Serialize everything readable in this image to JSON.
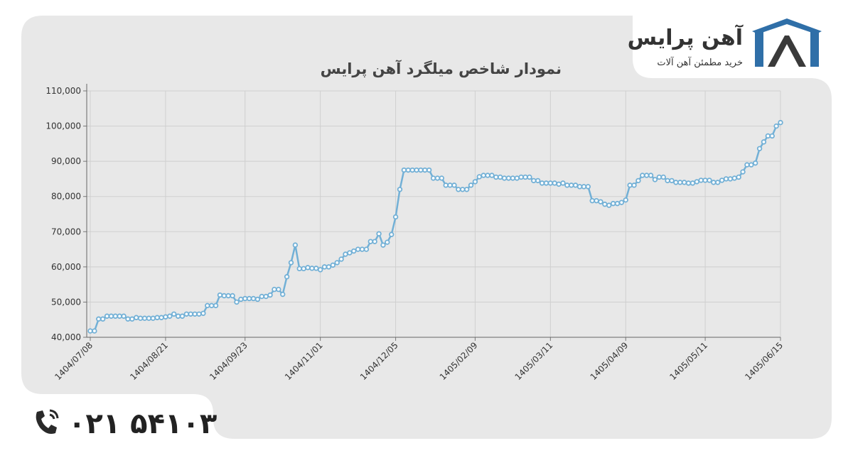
{
  "brand": {
    "name": "آهن پرایس",
    "slogan": "خرید مطمئن آهن آلات"
  },
  "phone": "۰۲۱ ۵۴۱۰۳",
  "chart_data": {
    "type": "line",
    "title": "نمودار شاخص میلگرد آهن پرایس",
    "categories": [
      "1404/07/08",
      null,
      null,
      null,
      null,
      null,
      null,
      null,
      null,
      null,
      null,
      null,
      null,
      null,
      null,
      null,
      null,
      null,
      "1404/08/21",
      null,
      null,
      null,
      null,
      null,
      null,
      null,
      null,
      null,
      null,
      null,
      null,
      null,
      null,
      null,
      null,
      null,
      null,
      "1404/09/23",
      null,
      null,
      null,
      null,
      null,
      null,
      null,
      null,
      null,
      null,
      null,
      null,
      null,
      null,
      null,
      null,
      null,
      "1404/11/01",
      null,
      null,
      null,
      null,
      null,
      null,
      null,
      null,
      null,
      null,
      null,
      null,
      null,
      null,
      null,
      null,
      null,
      "1404/12/05",
      null,
      null,
      null,
      null,
      null,
      null,
      null,
      null,
      null,
      null,
      null,
      null,
      null,
      null,
      null,
      null,
      null,
      null,
      "1405/02/09",
      null,
      null,
      null,
      null,
      null,
      null,
      null,
      null,
      null,
      null,
      null,
      null,
      null,
      null,
      null,
      null,
      null,
      "1405/03/11",
      null,
      null,
      null,
      null,
      null,
      null,
      null,
      null,
      null,
      null,
      null,
      null,
      null,
      null,
      null,
      null,
      null,
      "1405/04/09",
      null,
      null,
      null,
      null,
      null,
      null,
      null,
      null,
      null,
      null,
      null,
      null,
      null,
      null,
      null,
      null,
      null,
      null,
      "1405/05/11",
      null,
      null,
      null,
      null,
      null,
      null,
      null,
      null,
      null,
      null,
      null,
      null,
      null,
      null,
      null,
      null,
      null,
      "1405/06/15"
    ],
    "series": [
      {
        "name": "میلگرد",
        "color": "#72b0d6",
        "values": [
          41800,
          41800,
          45200,
          45200,
          46000,
          46000,
          46000,
          46000,
          46000,
          45200,
          45200,
          45600,
          45400,
          45400,
          45400,
          45400,
          45600,
          45600,
          45800,
          46000,
          46600,
          46000,
          46000,
          46600,
          46600,
          46600,
          46600,
          46800,
          49000,
          49000,
          49000,
          52000,
          51800,
          51800,
          51800,
          50000,
          50800,
          51000,
          51000,
          51000,
          50800,
          51600,
          51600,
          52000,
          53600,
          53600,
          52200,
          57200,
          61200,
          66200,
          59500,
          59500,
          59800,
          59600,
          59600,
          59200,
          60000,
          60000,
          60500,
          61200,
          62200,
          63600,
          64000,
          64500,
          65000,
          65000,
          65000,
          67200,
          67200,
          69400,
          66200,
          67000,
          69200,
          74200,
          82000,
          87500,
          87500,
          87500,
          87500,
          87500,
          87500,
          87500,
          85200,
          85200,
          85200,
          83200,
          83200,
          83200,
          82000,
          82000,
          82000,
          83200,
          84200,
          85600,
          86000,
          86000,
          86000,
          85500,
          85500,
          85200,
          85200,
          85200,
          85200,
          85500,
          85500,
          85500,
          84500,
          84500,
          83800,
          83800,
          83800,
          83800,
          83500,
          83800,
          83200,
          83200,
          83200,
          82800,
          82800,
          82800,
          78800,
          78800,
          78500,
          77800,
          77500,
          78000,
          78000,
          78300,
          79000,
          83200,
          83200,
          84500,
          86000,
          86000,
          86000,
          84800,
          85500,
          85500,
          84500,
          84500,
          84000,
          84000,
          84000,
          83800,
          83800,
          84200,
          84600,
          84600,
          84600,
          84000,
          84000,
          84600,
          85000,
          85000,
          85200,
          85500,
          87000,
          89000,
          89000,
          89500,
          93600,
          95500,
          97200,
          97200,
          100000,
          101000
        ]
      }
    ],
    "ylim": [
      40000,
      110000
    ],
    "yticks": [
      {
        "value": 40000,
        "label": "40,000"
      },
      {
        "value": 50000,
        "label": "50,000"
      },
      {
        "value": 60000,
        "label": "60,000"
      },
      {
        "value": 70000,
        "label": "70,000"
      },
      {
        "value": 80000,
        "label": "80,000"
      },
      {
        "value": 90000,
        "label": "90,000"
      },
      {
        "value": 100000,
        "label": "100,000"
      },
      {
        "value": 110000,
        "label": "110,000"
      }
    ],
    "grid": true
  }
}
